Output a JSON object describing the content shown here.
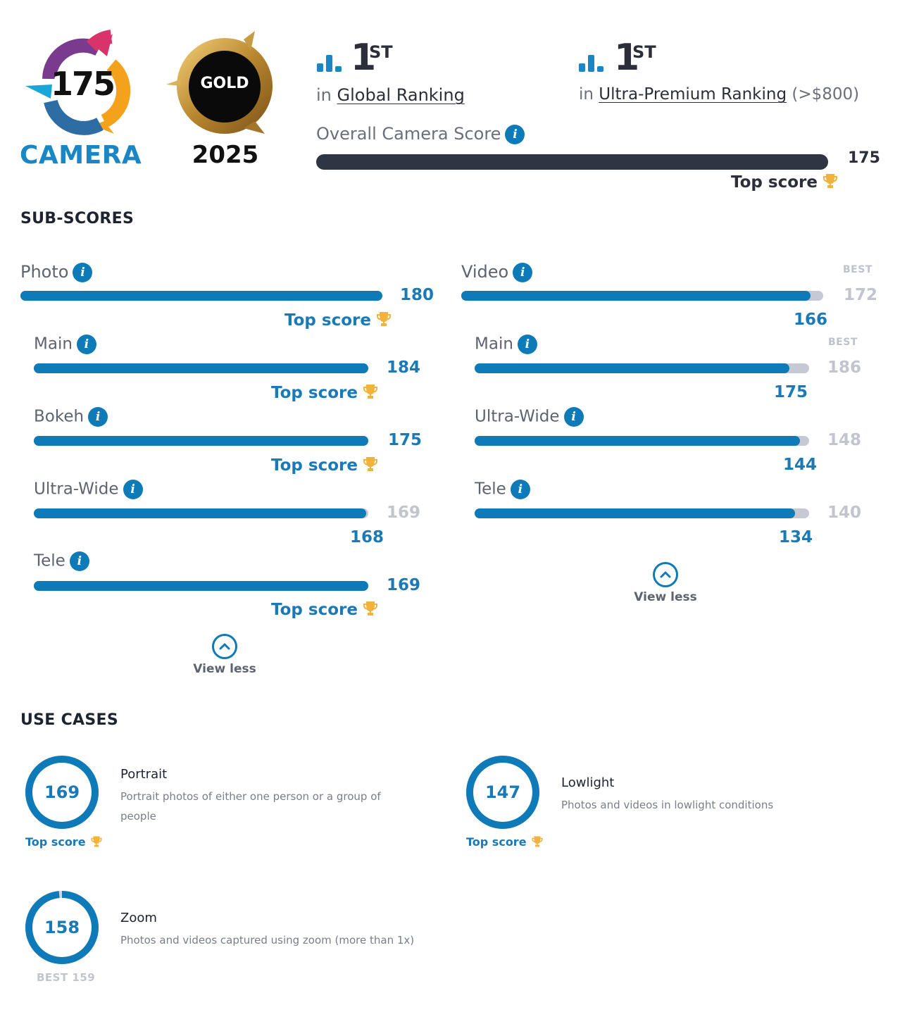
{
  "badge": {
    "score": "175",
    "label": "CAMERA",
    "award": "GOLD",
    "year": "2025"
  },
  "rankings": [
    {
      "position": "1",
      "suffix": "ST",
      "prefix": "in",
      "link": "Global Ranking",
      "extra": ""
    },
    {
      "position": "1",
      "suffix": "ST",
      "prefix": "in",
      "link": "Ultra-Premium Ranking",
      "extra": "(>$800)"
    }
  ],
  "overall": {
    "label": "Overall Camera Score",
    "score": "175",
    "max": 175,
    "top_label": "Top score"
  },
  "subscores": {
    "title": "SUB-SCORES",
    "best_label": "BEST",
    "top_label": "Top score",
    "photo": {
      "label": "Photo",
      "score": "180",
      "best": 180,
      "value": 180
    },
    "photo_items": [
      {
        "label": "Main",
        "score": "184",
        "value": 184,
        "best": 184
      },
      {
        "label": "Bokeh",
        "score": "175",
        "value": 175,
        "best": 175
      },
      {
        "label": "Ultra-Wide",
        "score": "168",
        "best_text": "169",
        "value": 168,
        "best": 169
      },
      {
        "label": "Tele",
        "score": "169",
        "value": 169,
        "best": 169
      }
    ],
    "video": {
      "label": "Video",
      "score": "166",
      "best_text": "172",
      "value": 166,
      "best": 172
    },
    "video_items": [
      {
        "label": "Main",
        "score": "175",
        "best_text": "186",
        "value": 175,
        "best": 186
      },
      {
        "label": "Ultra-Wide",
        "score": "144",
        "best_text": "148",
        "value": 144,
        "best": 148
      },
      {
        "label": "Tele",
        "score": "134",
        "best_text": "140",
        "value": 134,
        "best": 140
      }
    ],
    "view_less": "View less"
  },
  "use_cases": {
    "title": "USE CASES",
    "top_label": "Top score",
    "portrait": {
      "score": "169",
      "title": "Portrait",
      "desc": "Portrait photos of either one person or a group of people",
      "value": 169,
      "best": 169
    },
    "lowlight": {
      "score": "147",
      "title": "Lowlight",
      "desc": "Photos and videos in lowlight conditions",
      "value": 147,
      "best": 147
    },
    "zoom": {
      "score": "158",
      "title": "Zoom",
      "desc": "Photos and videos captured using zoom (more than 1x)",
      "best_text": "BEST 159",
      "value": 158,
      "best": 159
    }
  },
  "colors": {
    "accent": "#0e7ab8",
    "dark_bar": "#2f3542",
    "track": "#c6c9d3",
    "trophy": "#f2b33d"
  }
}
